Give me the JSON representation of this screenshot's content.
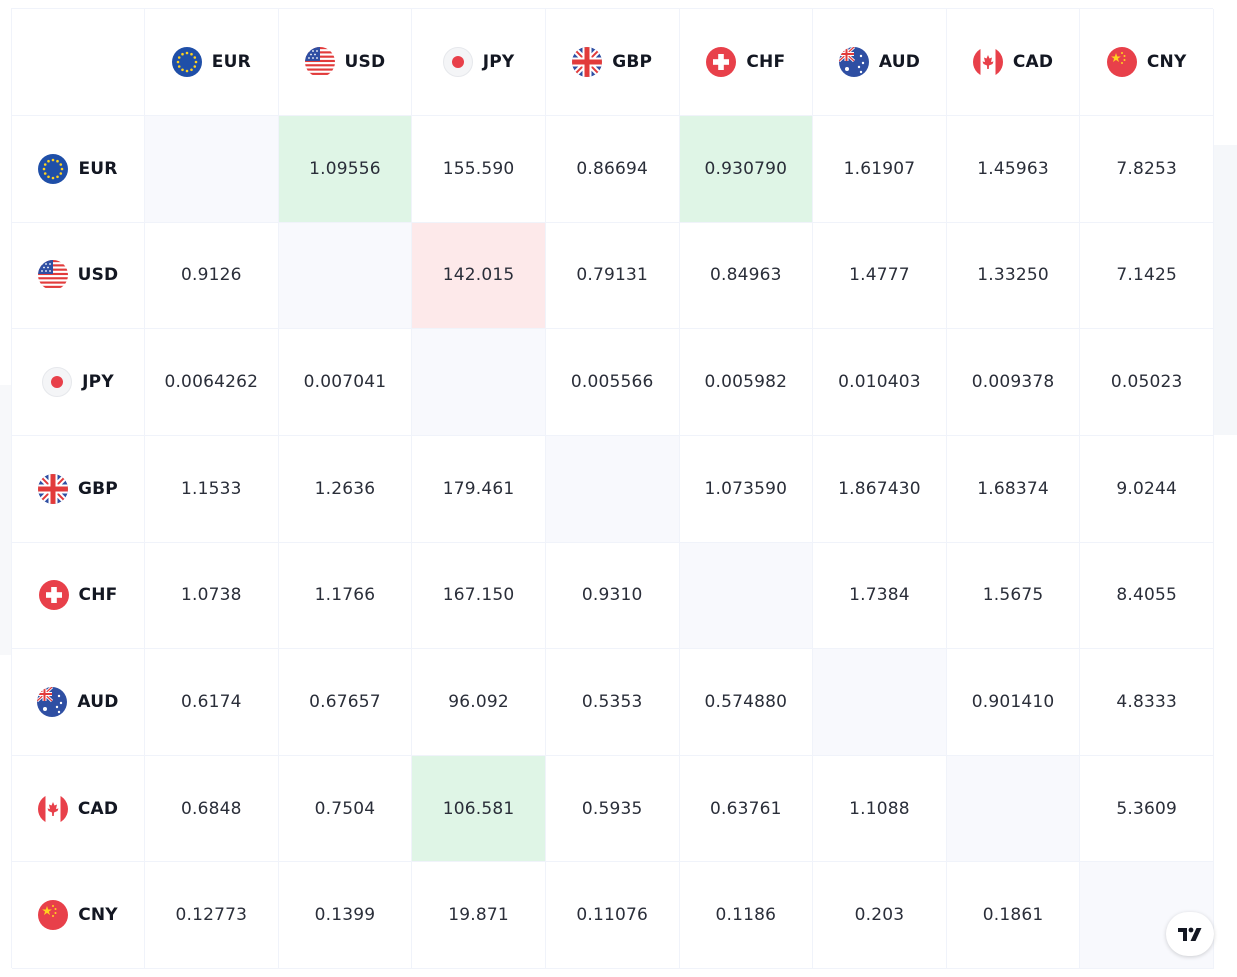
{
  "currencies": [
    "EUR",
    "USD",
    "JPY",
    "GBP",
    "CHF",
    "AUD",
    "CAD",
    "CNY"
  ],
  "colors": {
    "positive_bg": "#dff5e6",
    "negative_bg": "#fde9ea",
    "diagonal_bg": "#f8f9fd",
    "text": "#2a2e39"
  },
  "rows": [
    {
      "code": "EUR",
      "cells": [
        {
          "v": "",
          "s": "diag"
        },
        {
          "v": "1.09556",
          "s": "green"
        },
        {
          "v": "155.590",
          "s": ""
        },
        {
          "v": "0.86694",
          "s": ""
        },
        {
          "v": "0.930790",
          "s": "green"
        },
        {
          "v": "1.61907",
          "s": ""
        },
        {
          "v": "1.45963",
          "s": ""
        },
        {
          "v": "7.8253",
          "s": ""
        }
      ]
    },
    {
      "code": "USD",
      "cells": [
        {
          "v": "0.9126",
          "s": ""
        },
        {
          "v": "",
          "s": "diag"
        },
        {
          "v": "142.015",
          "s": "red"
        },
        {
          "v": "0.79131",
          "s": ""
        },
        {
          "v": "0.84963",
          "s": ""
        },
        {
          "v": "1.4777",
          "s": ""
        },
        {
          "v": "1.33250",
          "s": ""
        },
        {
          "v": "7.1425",
          "s": ""
        }
      ]
    },
    {
      "code": "JPY",
      "cells": [
        {
          "v": "0.0064262",
          "s": ""
        },
        {
          "v": "0.007041",
          "s": ""
        },
        {
          "v": "",
          "s": "diag"
        },
        {
          "v": "0.005566",
          "s": ""
        },
        {
          "v": "0.005982",
          "s": ""
        },
        {
          "v": "0.010403",
          "s": ""
        },
        {
          "v": "0.009378",
          "s": ""
        },
        {
          "v": "0.05023",
          "s": ""
        }
      ]
    },
    {
      "code": "GBP",
      "cells": [
        {
          "v": "1.1533",
          "s": ""
        },
        {
          "v": "1.2636",
          "s": ""
        },
        {
          "v": "179.461",
          "s": ""
        },
        {
          "v": "",
          "s": "diag"
        },
        {
          "v": "1.073590",
          "s": ""
        },
        {
          "v": "1.867430",
          "s": ""
        },
        {
          "v": "1.68374",
          "s": ""
        },
        {
          "v": "9.0244",
          "s": ""
        }
      ]
    },
    {
      "code": "CHF",
      "cells": [
        {
          "v": "1.0738",
          "s": ""
        },
        {
          "v": "1.1766",
          "s": ""
        },
        {
          "v": "167.150",
          "s": ""
        },
        {
          "v": "0.9310",
          "s": ""
        },
        {
          "v": "",
          "s": "diag"
        },
        {
          "v": "1.7384",
          "s": ""
        },
        {
          "v": "1.5675",
          "s": ""
        },
        {
          "v": "8.4055",
          "s": ""
        }
      ]
    },
    {
      "code": "AUD",
      "cells": [
        {
          "v": "0.6174",
          "s": ""
        },
        {
          "v": "0.67657",
          "s": ""
        },
        {
          "v": "96.092",
          "s": ""
        },
        {
          "v": "0.5353",
          "s": ""
        },
        {
          "v": "0.574880",
          "s": ""
        },
        {
          "v": "",
          "s": "diag"
        },
        {
          "v": "0.901410",
          "s": ""
        },
        {
          "v": "4.8333",
          "s": ""
        }
      ]
    },
    {
      "code": "CAD",
      "cells": [
        {
          "v": "0.6848",
          "s": ""
        },
        {
          "v": "0.7504",
          "s": ""
        },
        {
          "v": "106.581",
          "s": "green"
        },
        {
          "v": "0.5935",
          "s": ""
        },
        {
          "v": "0.63761",
          "s": ""
        },
        {
          "v": "1.1088",
          "s": ""
        },
        {
          "v": "",
          "s": "diag"
        },
        {
          "v": "5.3609",
          "s": ""
        }
      ]
    },
    {
      "code": "CNY",
      "cells": [
        {
          "v": "0.12773",
          "s": ""
        },
        {
          "v": "0.1399",
          "s": ""
        },
        {
          "v": "19.871",
          "s": ""
        },
        {
          "v": "0.11076",
          "s": ""
        },
        {
          "v": "0.1186",
          "s": ""
        },
        {
          "v": "0.203",
          "s": ""
        },
        {
          "v": "0.1861",
          "s": ""
        },
        {
          "v": "",
          "s": "diag"
        }
      ]
    }
  ],
  "icons": {
    "EUR": "eu-flag-icon",
    "USD": "us-flag-icon",
    "JPY": "japan-flag-icon",
    "GBP": "uk-flag-icon",
    "CHF": "swiss-flag-icon",
    "AUD": "australia-flag-icon",
    "CAD": "canada-flag-icon",
    "CNY": "china-flag-icon",
    "brand": "tradingview-logo-icon"
  }
}
